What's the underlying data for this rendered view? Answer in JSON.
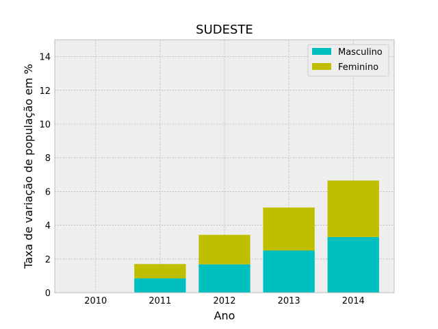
{
  "chart_data": {
    "type": "bar",
    "stacked": true,
    "title": "SUDESTE",
    "xlabel": "Ano",
    "ylabel": "Taxa de variação de população em %",
    "categories": [
      "2010",
      "2011",
      "2012",
      "2013",
      "2014"
    ],
    "ylim": [
      0,
      15
    ],
    "yticks": [
      0,
      2,
      4,
      6,
      8,
      10,
      12,
      14
    ],
    "grid": true,
    "legend_position": "top-right",
    "series": [
      {
        "name": "Masculino",
        "color": "#00bfbf",
        "values": [
          0,
          0.85,
          1.68,
          2.5,
          3.3
        ]
      },
      {
        "name": "Feminino",
        "color": "#bfbf00",
        "values": [
          0,
          0.85,
          1.75,
          2.55,
          3.35
        ]
      }
    ],
    "colors": {
      "background": "#eeeeee",
      "grid": "#b0b0b0",
      "frame": "#bcbcbc"
    }
  }
}
